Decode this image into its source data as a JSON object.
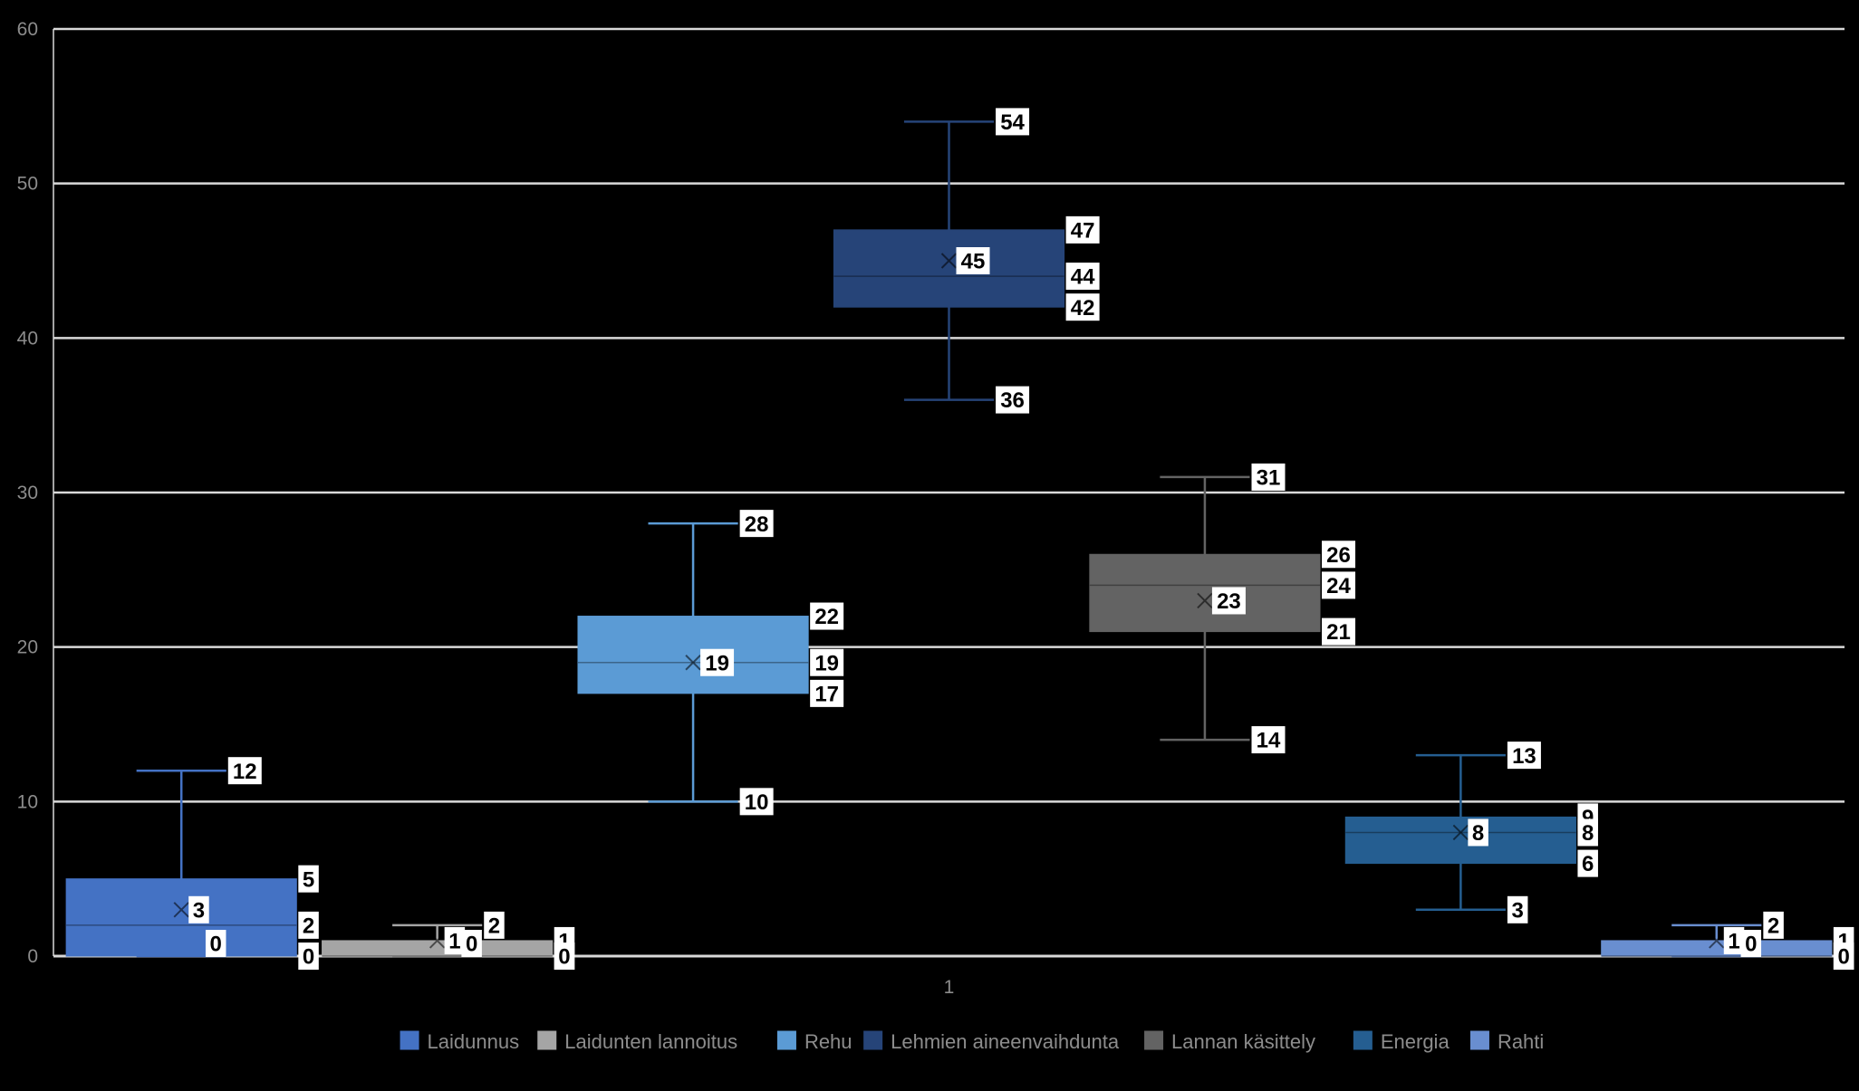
{
  "chart_data": {
    "type": "box",
    "categories": [
      "1"
    ],
    "ylim": [
      0,
      60
    ],
    "yticks": [
      0,
      10,
      20,
      30,
      40,
      50,
      60
    ],
    "grid": true,
    "legend_position": "bottom",
    "series": [
      {
        "name": "Laidunnus",
        "color": "#4472c4",
        "min": 0,
        "q1": 0,
        "median": 2,
        "q3": 5,
        "max": 12,
        "mean": 3,
        "labels": {
          "max": "12",
          "q3": "5",
          "mean": "3",
          "median": "2",
          "q1": "0",
          "min": "0"
        }
      },
      {
        "name": "Laidunten lannoitus",
        "color": "#a5a5a5",
        "min": 0,
        "q1": 0,
        "median": 0,
        "q3": 1,
        "max": 2,
        "mean": 1,
        "labels": {
          "max": "2",
          "q3": "1",
          "mean": "1",
          "median": "0",
          "q1": "0",
          "min": "0"
        }
      },
      {
        "name": "Rehu",
        "color": "#5b9bd5",
        "min": 10,
        "q1": 17,
        "median": 19,
        "q3": 22,
        "max": 28,
        "mean": 19,
        "labels": {
          "max": "28",
          "q3": "22",
          "mean": "19",
          "median": "19",
          "q1": "17",
          "min": "10"
        }
      },
      {
        "name": "Lehmien aineenvaihdunta",
        "color": "#264478",
        "min": 36,
        "q1": 42,
        "median": 44,
        "q3": 47,
        "max": 54,
        "mean": 45,
        "labels": {
          "max": "54",
          "q3": "47",
          "mean": "45",
          "median": "44",
          "q1": "42",
          "min": "36"
        }
      },
      {
        "name": "Lannan käsittely",
        "color": "#636363",
        "min": 14,
        "q1": 21,
        "median": 24,
        "q3": 26,
        "max": 31,
        "mean": 23,
        "labels": {
          "max": "31",
          "q3": "26",
          "mean": "23",
          "median": "24",
          "q1": "21",
          "min": "14"
        }
      },
      {
        "name": "Energia",
        "color": "#255e91",
        "min": 3,
        "q1": 6,
        "median": 8,
        "q3": 9,
        "max": 13,
        "mean": 8,
        "labels": {
          "max": "13",
          "q3": "9",
          "mean": "8",
          "median": "8",
          "q1": "6",
          "min": "3"
        }
      },
      {
        "name": "Rahti",
        "color": "#698ed0",
        "min": 0,
        "q1": 0,
        "median": 0,
        "q3": 1,
        "max": 2,
        "mean": 1,
        "labels": {
          "max": "2",
          "q3": "1",
          "mean": "1",
          "median": "0",
          "q1": "0",
          "min": "0"
        }
      }
    ]
  }
}
